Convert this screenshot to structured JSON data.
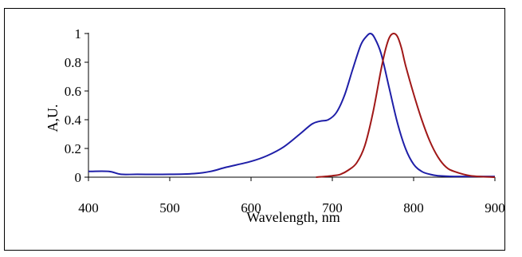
{
  "chart_data": {
    "type": "line",
    "xlabel": "Wavelength, nm",
    "ylabel": "A,U.",
    "xlim": [
      400,
      900
    ],
    "ylim": [
      0,
      1
    ],
    "x_ticks": [
      "400",
      "500",
      "600",
      "700",
      "800",
      "900"
    ],
    "y_ticks": [
      "0",
      "0.2",
      "0.4",
      "0.6",
      "0.8",
      "1"
    ],
    "grid": false,
    "legend": "none",
    "series": [
      {
        "color": "#1f1fa8",
        "x": [
          400,
          425,
          440,
          460,
          500,
          530,
          550,
          570,
          600,
          620,
          640,
          660,
          675,
          685,
          695,
          705,
          715,
          725,
          735,
          742,
          747,
          752,
          760,
          770,
          780,
          790,
          800,
          810,
          820,
          830,
          850,
          900
        ],
        "y": [
          0.04,
          0.04,
          0.02,
          0.02,
          0.02,
          0.025,
          0.04,
          0.07,
          0.11,
          0.15,
          0.21,
          0.3,
          0.37,
          0.39,
          0.4,
          0.45,
          0.57,
          0.75,
          0.92,
          0.98,
          1.0,
          0.97,
          0.86,
          0.62,
          0.38,
          0.2,
          0.09,
          0.04,
          0.02,
          0.01,
          0.005,
          0.005
        ]
      },
      {
        "color": "#a01818",
        "x": [
          680,
          700,
          710,
          720,
          730,
          740,
          750,
          760,
          765,
          770,
          775,
          780,
          785,
          790,
          800,
          810,
          820,
          830,
          840,
          850,
          870,
          900
        ],
        "y": [
          0.0,
          0.01,
          0.02,
          0.05,
          0.1,
          0.22,
          0.45,
          0.75,
          0.88,
          0.97,
          1.0,
          0.98,
          0.9,
          0.78,
          0.58,
          0.4,
          0.25,
          0.14,
          0.07,
          0.04,
          0.01,
          0.0
        ]
      }
    ]
  }
}
